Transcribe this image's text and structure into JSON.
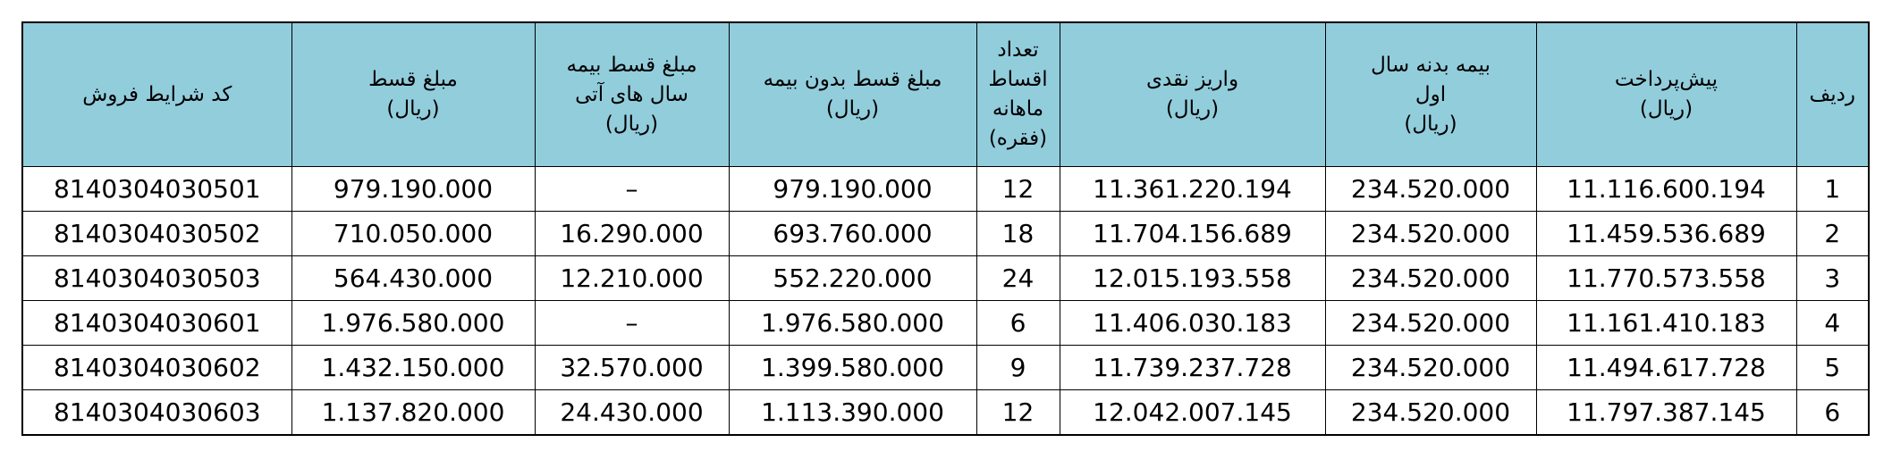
{
  "table": {
    "headers": [
      [
        "ردیف"
      ],
      [
        "پیش‌پرداخت",
        "(ریال)"
      ],
      [
        "بیمه بدنه  سال",
        "اول",
        "(ریال)"
      ],
      [
        "واریز نقدی",
        "(ریال)"
      ],
      [
        "تعداد",
        "اقساط",
        "ماهانه",
        "(فقره)"
      ],
      [
        "مبلغ قسط  بدون بیمه",
        "(ریال)"
      ],
      [
        "مبلغ قسط بیمه",
        "سال های آتی",
        "(ریال)"
      ],
      [
        "مبلغ قسط",
        "(ریال)"
      ],
      [
        "کد شرایط فروش"
      ]
    ],
    "rows": [
      [
        "1",
        "11.116.600.194",
        "234.520.000",
        "11.361.220.194",
        "12",
        "979.190.000",
        "–",
        "979.190.000",
        "8140304030501"
      ],
      [
        "2",
        "11.459.536.689",
        "234.520.000",
        "11.704.156.689",
        "18",
        "693.760.000",
        "16.290.000",
        "710.050.000",
        "8140304030502"
      ],
      [
        "3",
        "11.770.573.558",
        "234.520.000",
        "12.015.193.558",
        "24",
        "552.220.000",
        "12.210.000",
        "564.430.000",
        "8140304030503"
      ],
      [
        "4",
        "11.161.410.183",
        "234.520.000",
        "11.406.030.183",
        "6",
        "1.976.580.000",
        "–",
        "1.976.580.000",
        "8140304030601"
      ],
      [
        "5",
        "11.494.617.728",
        "234.520.000",
        "11.739.237.728",
        "9",
        "1.399.580.000",
        "32.570.000",
        "1.432.150.000",
        "8140304030602"
      ],
      [
        "6",
        "11.797.387.145",
        "234.520.000",
        "12.042.007.145",
        "12",
        "1.113.390.000",
        "24.430.000",
        "1.137.820.000",
        "8140304030603"
      ]
    ]
  }
}
